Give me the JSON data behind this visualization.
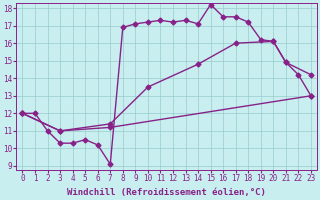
{
  "xlabel": "Windchill (Refroidissement éolien,°C)",
  "ylabel": "",
  "bg_color": "#c8eef0",
  "line_color": "#882288",
  "grid_color": "#99cccc",
  "xlim": [
    0,
    23
  ],
  "ylim": [
    9,
    18
  ],
  "xticks": [
    0,
    1,
    2,
    3,
    4,
    5,
    6,
    7,
    8,
    9,
    10,
    11,
    12,
    13,
    14,
    15,
    16,
    17,
    18,
    19,
    20,
    21,
    22,
    23
  ],
  "yticks": [
    9,
    10,
    11,
    12,
    13,
    14,
    15,
    16,
    17,
    18
  ],
  "line1_x": [
    0,
    1,
    2,
    3,
    4,
    5,
    6,
    7,
    8,
    9,
    10,
    11,
    12,
    13,
    14,
    15,
    16,
    17,
    18,
    19,
    20,
    21,
    22,
    23
  ],
  "line1_y": [
    12.0,
    12.0,
    11.0,
    10.3,
    10.3,
    10.5,
    10.2,
    9.1,
    16.9,
    17.1,
    17.2,
    17.3,
    17.2,
    17.3,
    17.1,
    18.2,
    17.5,
    17.5,
    17.2,
    16.2,
    16.1,
    14.9,
    14.2,
    13.0
  ],
  "line2_x": [
    0,
    3,
    7,
    23
  ],
  "line2_y": [
    12.0,
    11.0,
    11.2,
    13.0
  ],
  "line3_x": [
    0,
    3,
    7,
    10,
    14,
    17,
    20,
    21,
    23
  ],
  "line3_y": [
    12.0,
    11.0,
    11.4,
    13.5,
    14.8,
    16.0,
    16.1,
    14.9,
    14.2
  ],
  "marker": "D",
  "marker_size": 2.5,
  "line_width": 1.0,
  "tick_fontsize": 5.5,
  "label_fontsize": 6.5
}
